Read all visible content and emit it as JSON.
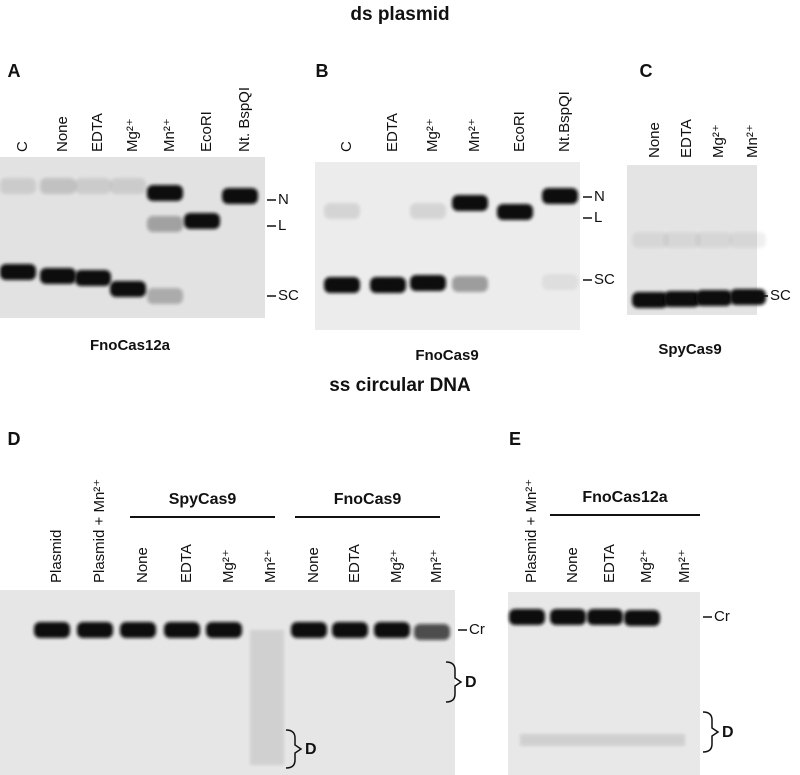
{
  "sections": [
    {
      "title": "ds plasmid",
      "panels": [
        {
          "label": "A",
          "lanes": [
            "C",
            "None",
            "EDTA",
            "Mg²⁺",
            "Mn²⁺",
            "EcoRI",
            "Nt. BspQI"
          ],
          "markers": [
            "N",
            "L",
            "SC"
          ],
          "caption": "FnoCas12a"
        },
        {
          "label": "B",
          "lanes": [
            "C",
            "EDTA",
            "Mg²⁺",
            "Mn²⁺",
            "EcoRI",
            "Nt.BspQI"
          ],
          "markers": [
            "N",
            "L",
            "SC"
          ],
          "caption": "FnoCas9"
        },
        {
          "label": "C",
          "lanes": [
            "None",
            "EDTA",
            "Mg²⁺",
            "Mn²⁺"
          ],
          "markers": [
            "SC"
          ],
          "caption": "SpyCas9"
        }
      ]
    },
    {
      "title": "ss circular DNA",
      "panels": [
        {
          "label": "D",
          "lanes": [
            "Plasmid",
            "Plasmid + Mn²⁺"
          ],
          "groups": [
            {
              "name": "SpyCas9",
              "lanes": [
                "None",
                "EDTA",
                "Mg²⁺",
                "Mn²⁺"
              ]
            },
            {
              "name": "FnoCas9",
              "lanes": [
                "None",
                "EDTA",
                "Mg²⁺",
                "Mn²⁺"
              ]
            }
          ],
          "markers": [
            "Cr",
            "D",
            "D"
          ]
        },
        {
          "label": "E",
          "lanes": [
            "Plasmid + Mn²⁺"
          ],
          "groups": [
            {
              "name": "FnoCas12a",
              "lanes": [
                "None",
                "EDTA",
                "Mg²⁺",
                "Mn²⁺"
              ]
            }
          ],
          "markers": [
            "Cr",
            "D"
          ]
        }
      ]
    }
  ]
}
